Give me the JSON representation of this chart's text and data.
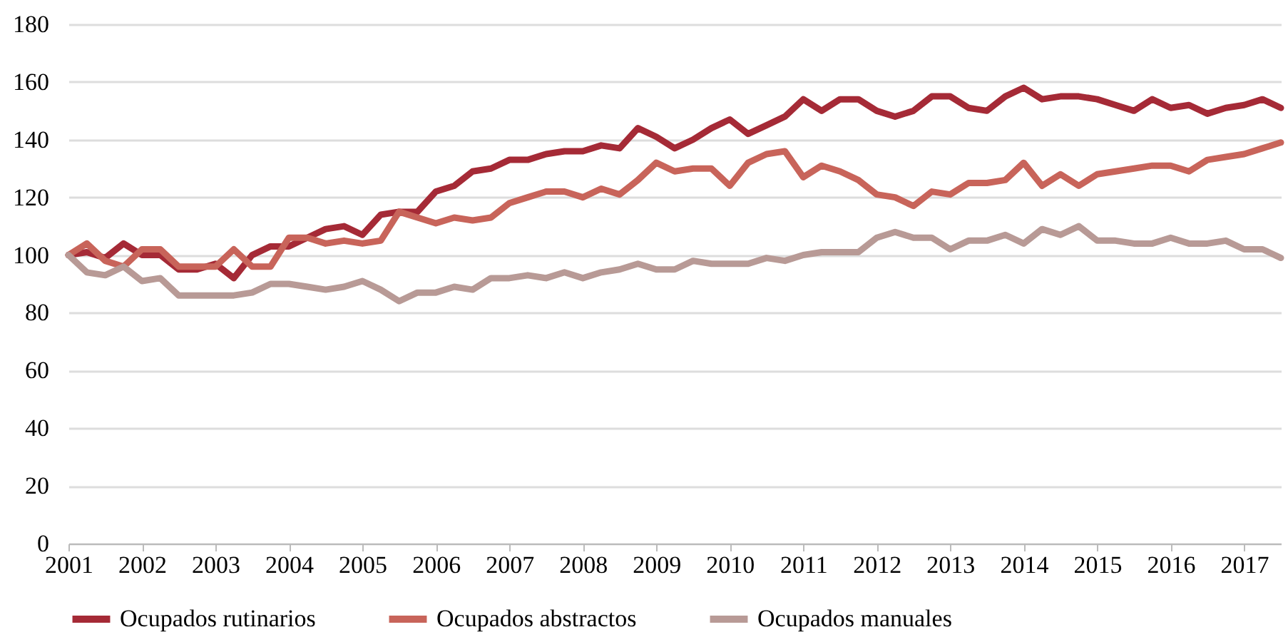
{
  "chart_data": {
    "type": "line",
    "x": [
      2001,
      2001.25,
      2001.5,
      2001.75,
      2002,
      2002.25,
      2002.5,
      2002.75,
      2003,
      2003.25,
      2003.5,
      2003.75,
      2004,
      2004.25,
      2004.5,
      2004.75,
      2005,
      2005.25,
      2005.5,
      2005.75,
      2006,
      2006.25,
      2006.5,
      2006.75,
      2007,
      2007.25,
      2007.5,
      2007.75,
      2008,
      2008.25,
      2008.5,
      2008.75,
      2009,
      2009.25,
      2009.5,
      2009.75,
      2010,
      2010.25,
      2010.5,
      2010.75,
      2011,
      2011.25,
      2011.5,
      2011.75,
      2012,
      2012.25,
      2012.5,
      2012.75,
      2013,
      2013.25,
      2013.5,
      2013.75,
      2014,
      2014.25,
      2014.5,
      2014.75,
      2015,
      2015.25,
      2015.5,
      2015.75,
      2016,
      2016.25,
      2016.5,
      2016.75,
      2017,
      2017.25,
      2017.5
    ],
    "series": [
      {
        "name": "Ocupados rutinarios",
        "color": "#a52a36",
        "values": [
          100,
          101,
          99,
          104,
          100,
          100,
          95,
          95,
          97,
          92,
          100,
          103,
          103,
          106,
          109,
          110,
          107,
          114,
          115,
          115,
          122,
          124,
          129,
          130,
          133,
          133,
          135,
          136,
          136,
          138,
          137,
          144,
          141,
          137,
          140,
          144,
          147,
          142,
          145,
          148,
          154,
          150,
          154,
          154,
          150,
          148,
          150,
          155,
          155,
          151,
          150,
          155,
          158,
          154,
          155,
          155,
          154,
          152,
          150,
          154,
          151,
          152,
          149,
          151,
          152,
          154,
          151
        ]
      },
      {
        "name": "Ocupados abstractos",
        "color": "#c8645a",
        "values": [
          100,
          104,
          98,
          96,
          102,
          102,
          96,
          96,
          96,
          102,
          96,
          96,
          106,
          106,
          104,
          105,
          104,
          105,
          115,
          113,
          111,
          113,
          112,
          113,
          118,
          120,
          122,
          122,
          120,
          123,
          121,
          126,
          132,
          129,
          130,
          130,
          124,
          132,
          135,
          136,
          127,
          131,
          129,
          126,
          121,
          120,
          117,
          122,
          121,
          125,
          125,
          126,
          132,
          124,
          128,
          124,
          128,
          129,
          130,
          131,
          131,
          129,
          133,
          134,
          135,
          137,
          139
        ]
      },
      {
        "name": "Ocupados manuales",
        "color": "#b89a96",
        "values": [
          100,
          94,
          93,
          96,
          91,
          92,
          86,
          86,
          86,
          86,
          87,
          90,
          90,
          89,
          88,
          89,
          91,
          88,
          84,
          87,
          87,
          89,
          88,
          92,
          92,
          93,
          92,
          94,
          92,
          94,
          95,
          97,
          95,
          95,
          98,
          97,
          97,
          97,
          99,
          98,
          100,
          101,
          101,
          101,
          106,
          108,
          106,
          106,
          102,
          105,
          105,
          107,
          104,
          109,
          107,
          110,
          105,
          105,
          104,
          104,
          106,
          104,
          104,
          105,
          102,
          102,
          99
        ]
      }
    ],
    "xlim": [
      2001,
      2017.5
    ],
    "xticks": [
      2001,
      2002,
      2003,
      2004,
      2005,
      2006,
      2007,
      2008,
      2009,
      2010,
      2011,
      2012,
      2013,
      2014,
      2015,
      2016,
      2017
    ],
    "ylim": [
      0,
      180
    ],
    "yticks": [
      0,
      20,
      40,
      60,
      80,
      100,
      120,
      140,
      160,
      180
    ],
    "grid": "y",
    "legend": "bottom",
    "marker": "none",
    "line_style": "solid"
  }
}
